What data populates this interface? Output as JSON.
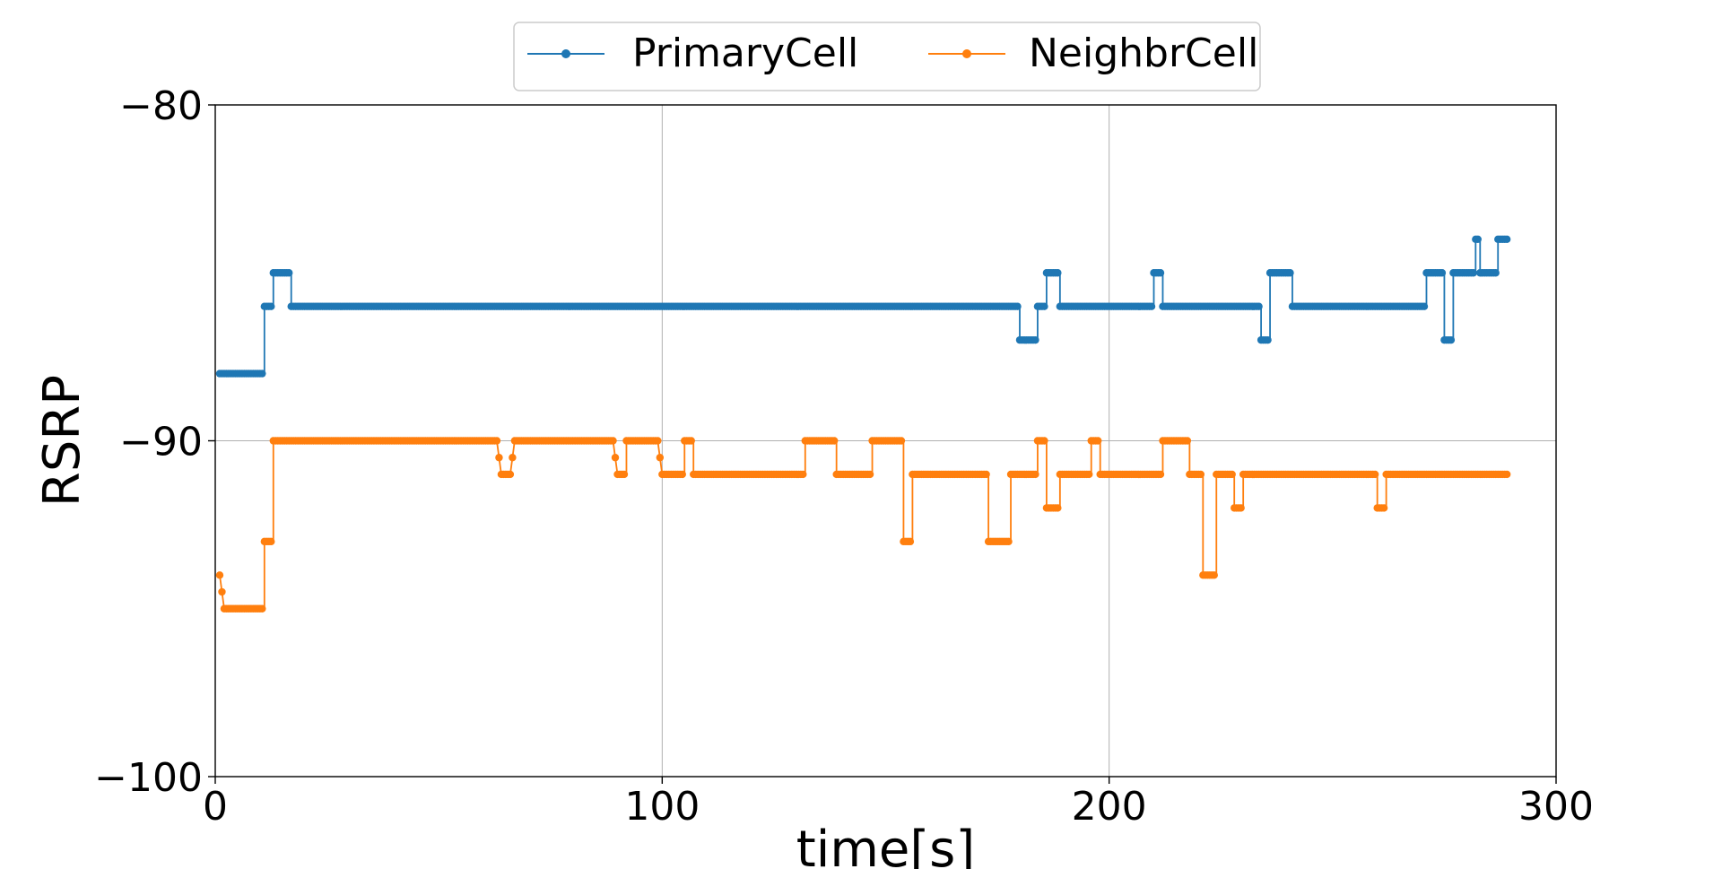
{
  "chart_data": {
    "type": "line",
    "xlabel": "time[s]",
    "ylabel": "RSRP",
    "xlim": [
      0,
      300
    ],
    "ylim": [
      -100,
      -80
    ],
    "xticks": [
      0,
      100,
      200,
      300
    ],
    "yticks": [
      -100,
      -90,
      -80
    ],
    "xtick_labels": [
      "0",
      "100",
      "200",
      "300"
    ],
    "ytick_labels": [
      "−100",
      "−90",
      "−80"
    ],
    "grid": true,
    "legend": {
      "placement": "top-center",
      "ncol": 2
    },
    "series": [
      {
        "name": "PrimaryCell",
        "color": "#1f77b4",
        "marker": "circle",
        "segments": [
          [
            1,
            -88
          ],
          [
            11,
            -88
          ],
          [
            11,
            -86
          ],
          [
            13,
            -86
          ],
          [
            13,
            -85
          ],
          [
            17,
            -85
          ],
          [
            17,
            -86
          ],
          [
            180,
            -86
          ],
          [
            180,
            -87
          ],
          [
            184,
            -87
          ],
          [
            184,
            -86
          ],
          [
            186,
            -86
          ],
          [
            186,
            -85
          ],
          [
            189,
            -85
          ],
          [
            189,
            -86
          ],
          [
            210,
            -86
          ],
          [
            210,
            -85
          ],
          [
            212,
            -85
          ],
          [
            212,
            -86
          ],
          [
            234,
            -86
          ],
          [
            234,
            -87
          ],
          [
            236,
            -87
          ],
          [
            236,
            -85
          ],
          [
            241,
            -85
          ],
          [
            241,
            -86
          ],
          [
            271,
            -86
          ],
          [
            271,
            -85
          ],
          [
            275,
            -85
          ],
          [
            275,
            -87
          ],
          [
            277,
            -87
          ],
          [
            277,
            -85
          ],
          [
            282,
            -85
          ],
          [
            282,
            -84
          ],
          [
            283,
            -84
          ],
          [
            283,
            -85
          ],
          [
            287,
            -85
          ],
          [
            287,
            -84
          ],
          [
            289,
            -84
          ]
        ]
      },
      {
        "name": "NeighbrCell",
        "color": "#ff7f0e",
        "marker": "circle",
        "segments": [
          [
            1,
            -94
          ],
          [
            2,
            -95
          ],
          [
            11,
            -95
          ],
          [
            11,
            -93
          ],
          [
            13,
            -93
          ],
          [
            13,
            -90
          ],
          [
            63,
            -90
          ],
          [
            64,
            -91
          ],
          [
            66,
            -91
          ],
          [
            67,
            -90
          ],
          [
            89,
            -90
          ],
          [
            90,
            -91
          ],
          [
            92,
            -91
          ],
          [
            92,
            -90
          ],
          [
            99,
            -90
          ],
          [
            100,
            -91
          ],
          [
            105,
            -91
          ],
          [
            105,
            -90
          ],
          [
            107,
            -90
          ],
          [
            107,
            -91
          ],
          [
            132,
            -91
          ],
          [
            132,
            -90
          ],
          [
            139,
            -90
          ],
          [
            139,
            -91
          ],
          [
            147,
            -91
          ],
          [
            147,
            -90
          ],
          [
            154,
            -90
          ],
          [
            154,
            -93
          ],
          [
            156,
            -93
          ],
          [
            156,
            -91
          ],
          [
            173,
            -91
          ],
          [
            173,
            -93
          ],
          [
            178,
            -93
          ],
          [
            178,
            -91
          ],
          [
            184,
            -91
          ],
          [
            184,
            -90
          ],
          [
            186,
            -90
          ],
          [
            186,
            -92
          ],
          [
            189,
            -92
          ],
          [
            189,
            -91
          ],
          [
            196,
            -91
          ],
          [
            196,
            -90
          ],
          [
            198,
            -90
          ],
          [
            198,
            -91
          ],
          [
            212,
            -91
          ],
          [
            212,
            -90
          ],
          [
            218,
            -90
          ],
          [
            218,
            -91
          ],
          [
            221,
            -91
          ],
          [
            221,
            -94
          ],
          [
            224,
            -94
          ],
          [
            224,
            -91
          ],
          [
            228,
            -91
          ],
          [
            228,
            -92
          ],
          [
            230,
            -92
          ],
          [
            230,
            -91
          ],
          [
            260,
            -91
          ],
          [
            260,
            -92
          ],
          [
            262,
            -92
          ],
          [
            262,
            -91
          ],
          [
            289,
            -91
          ]
        ]
      }
    ]
  }
}
